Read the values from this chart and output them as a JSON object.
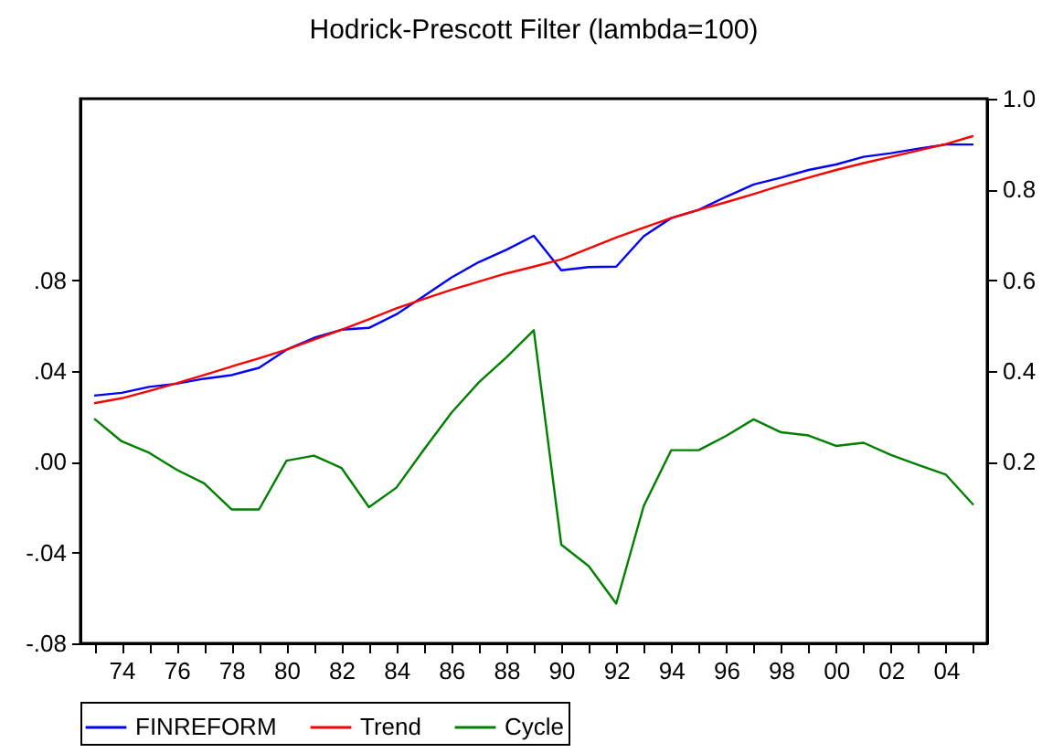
{
  "chart_data": {
    "type": "line",
    "title": "Hodrick-Prescott Filter (lambda=100)",
    "x": [
      1973,
      1974,
      1975,
      1976,
      1977,
      1978,
      1979,
      1980,
      1981,
      1982,
      1983,
      1984,
      1985,
      1986,
      1987,
      1988,
      1989,
      1990,
      1991,
      1992,
      1993,
      1994,
      1995,
      1996,
      1997,
      1998,
      1999,
      2000,
      2001,
      2002,
      2003,
      2004,
      2005
    ],
    "xlim": [
      1972.5,
      2005.5
    ],
    "xticks": [
      {
        "value": 1973,
        "label": null
      },
      {
        "value": 1974,
        "label": "74"
      },
      {
        "value": 1975,
        "label": null
      },
      {
        "value": 1976,
        "label": "76"
      },
      {
        "value": 1977,
        "label": null
      },
      {
        "value": 1978,
        "label": "78"
      },
      {
        "value": 1979,
        "label": null
      },
      {
        "value": 1980,
        "label": "80"
      },
      {
        "value": 1981,
        "label": null
      },
      {
        "value": 1982,
        "label": "82"
      },
      {
        "value": 1983,
        "label": null
      },
      {
        "value": 1984,
        "label": "84"
      },
      {
        "value": 1985,
        "label": null
      },
      {
        "value": 1986,
        "label": "86"
      },
      {
        "value": 1987,
        "label": null
      },
      {
        "value": 1988,
        "label": "88"
      },
      {
        "value": 1989,
        "label": null
      },
      {
        "value": 1990,
        "label": "90"
      },
      {
        "value": 1991,
        "label": null
      },
      {
        "value": 1992,
        "label": "92"
      },
      {
        "value": 1993,
        "label": null
      },
      {
        "value": 1994,
        "label": "94"
      },
      {
        "value": 1995,
        "label": null
      },
      {
        "value": 1996,
        "label": "96"
      },
      {
        "value": 1997,
        "label": null
      },
      {
        "value": 1998,
        "label": "98"
      },
      {
        "value": 1999,
        "label": null
      },
      {
        "value": 2000,
        "label": "00"
      },
      {
        "value": 2001,
        "label": null
      },
      {
        "value": 2002,
        "label": "02"
      },
      {
        "value": 2003,
        "label": null
      },
      {
        "value": 2004,
        "label": "04"
      },
      {
        "value": 2005,
        "label": null
      }
    ],
    "ylim": [
      -0.08,
      0.16
    ],
    "yticks": [
      {
        "value": -0.08,
        "label": "-.08"
      },
      {
        "value": -0.04,
        "label": "-.04"
      },
      {
        "value": 0,
        "label": ".00"
      },
      {
        "value": 0.04,
        "label": ".04"
      },
      {
        "value": 0.08,
        "label": ".08"
      }
    ],
    "y2lim": [
      -0.2,
      1.0
    ],
    "y2ticks": [
      {
        "value": 0.2,
        "label": "0.2"
      },
      {
        "value": 0.4,
        "label": "0.4"
      },
      {
        "value": 0.6,
        "label": "0.6"
      },
      {
        "value": 0.8,
        "label": "0.8"
      },
      {
        "value": 1.0,
        "label": "1.0"
      }
    ],
    "legend": "bottom",
    "series": [
      {
        "name": "FINREFORM",
        "color": "#0000ff",
        "axis": "y2",
        "values": [
          0.346,
          0.352,
          0.365,
          0.372,
          0.383,
          0.391,
          0.407,
          0.447,
          0.473,
          0.491,
          0.495,
          0.525,
          0.565,
          0.606,
          0.64,
          0.667,
          0.698,
          0.622,
          0.629,
          0.63,
          0.697,
          0.737,
          0.755,
          0.784,
          0.811,
          0.826,
          0.843,
          0.855,
          0.872,
          0.88,
          0.89,
          0.899,
          0.899
        ]
      },
      {
        "name": "Trend",
        "color": "#ff0000",
        "axis": "y2",
        "values": [
          0.329,
          0.34,
          0.356,
          0.373,
          0.391,
          0.41,
          0.428,
          0.447,
          0.469,
          0.491,
          0.514,
          0.538,
          0.559,
          0.579,
          0.597,
          0.615,
          0.63,
          0.646,
          0.67,
          0.694,
          0.716,
          0.737,
          0.755,
          0.772,
          0.79,
          0.809,
          0.826,
          0.843,
          0.858,
          0.872,
          0.886,
          0.9,
          0.918
        ]
      },
      {
        "name": "Cycle",
        "color": "#008000",
        "values": [
          0.019,
          0.009,
          0.004,
          -0.0035,
          -0.0095,
          -0.021,
          -0.021,
          0.0005,
          0.0027,
          -0.0027,
          -0.02,
          -0.0114,
          0.0054,
          0.0216,
          0.035,
          0.046,
          0.058,
          -0.0365,
          -0.046,
          -0.0625,
          -0.0195,
          0.0051,
          0.0051,
          0.0114,
          0.0187,
          0.013,
          0.0116,
          0.007,
          0.0084,
          0.003,
          -0.0014,
          -0.0057,
          -0.019
        ]
      }
    ]
  }
}
